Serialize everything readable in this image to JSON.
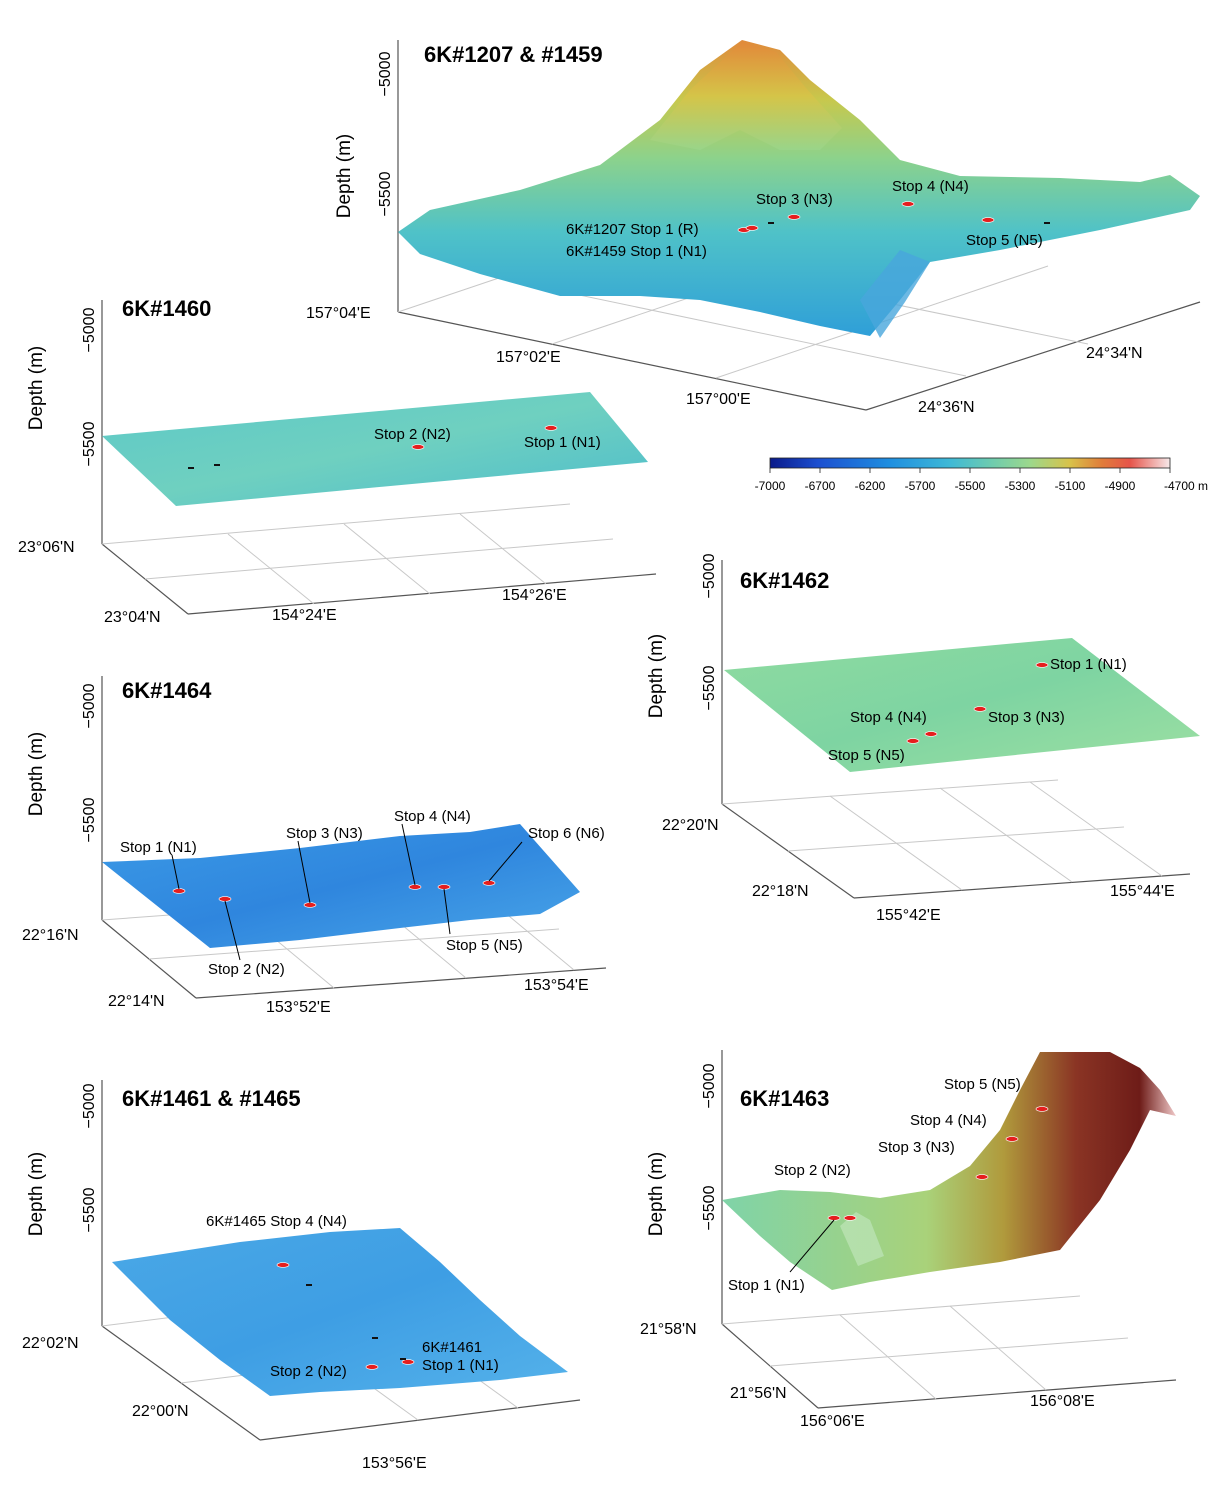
{
  "figure": {
    "colorbar": {
      "ticks": [
        "-7000",
        "-6700",
        "-6200",
        "-5700",
        "-5500",
        "-5300",
        "-5100",
        "-4900",
        "-4700 m"
      ],
      "colors": [
        "#0a1a8a",
        "#1c4fd0",
        "#1f8fe0",
        "#3fb9d6",
        "#6ccbb0",
        "#9cd88c",
        "#d8c24a",
        "#e07c3a",
        "#e6544a",
        "#f7e9ea"
      ]
    }
  },
  "chart_data": [
    {
      "id": "p1207",
      "type": "surface3d",
      "title": "6K#1207 & #1459",
      "zlabel": "Depth (m)",
      "zticks": [
        "−5000",
        "−5500"
      ],
      "xticks": [
        "157°04'E",
        "157°02'E",
        "157°00'E"
      ],
      "yticks": [
        "24°34'N",
        "24°36'N"
      ],
      "stops": [
        "6K#1207 Stop 1 (R)",
        "6K#1459 Stop 1 (N1)",
        "Stop 3 (N3)",
        "Stop 4 (N4)",
        "Stop 5 (N5)"
      ]
    },
    {
      "id": "p1460",
      "type": "surface3d",
      "title": "6K#1460",
      "zlabel": "Depth (m)",
      "zticks": [
        "−5000",
        "−5500"
      ],
      "xticks": [
        "154°24'E",
        "154°26'E"
      ],
      "yticks": [
        "23°06'N",
        "23°04'N"
      ],
      "stops": [
        "Stop 2 (N2)",
        "Stop 1 (N1)"
      ]
    },
    {
      "id": "p1462",
      "type": "surface3d",
      "title": "6K#1462",
      "zlabel": "Depth (m)",
      "zticks": [
        "−5000",
        "−5500"
      ],
      "xticks": [
        "155°42'E",
        "155°44'E"
      ],
      "yticks": [
        "22°20'N",
        "22°18'N"
      ],
      "stops": [
        "Stop 1 (N1)",
        "Stop 4 (N4)",
        "Stop 3 (N3)",
        "Stop 5 (N5)"
      ]
    },
    {
      "id": "p1464",
      "type": "surface3d",
      "title": "6K#1464",
      "zlabel": "Depth (m)",
      "zticks": [
        "−5000",
        "−5500"
      ],
      "xticks": [
        "153°52'E",
        "153°54'E"
      ],
      "yticks": [
        "22°16'N",
        "22°14'N"
      ],
      "stops": [
        "Stop 1 (N1)",
        "Stop 3 (N3)",
        "Stop 4 (N4)",
        "Stop 6 (N6)",
        "Stop 2 (N2)",
        "Stop 5 (N5)"
      ]
    },
    {
      "id": "p1461",
      "type": "surface3d",
      "title": "6K#1461 & #1465",
      "zlabel": "Depth (m)",
      "zticks": [
        "−5000",
        "−5500"
      ],
      "xticks": [
        "153°56'E"
      ],
      "yticks": [
        "22°02'N",
        "22°00'N"
      ],
      "stops": [
        "6K#1465 Stop 4 (N4)",
        "6K#1461",
        "Stop 1 (N1)",
        "Stop 2 (N2)"
      ]
    },
    {
      "id": "p1463",
      "type": "surface3d",
      "title": "6K#1463",
      "zlabel": "Depth (m)",
      "zticks": [
        "−5000",
        "−5500"
      ],
      "xticks": [
        "156°06'E",
        "156°08'E"
      ],
      "yticks": [
        "21°58'N",
        "21°56'N"
      ],
      "stops": [
        "Stop 5 (N5)",
        "Stop 4 (N4)",
        "Stop 3 (N3)",
        "Stop 2 (N2)",
        "Stop 1 (N1)"
      ]
    }
  ]
}
